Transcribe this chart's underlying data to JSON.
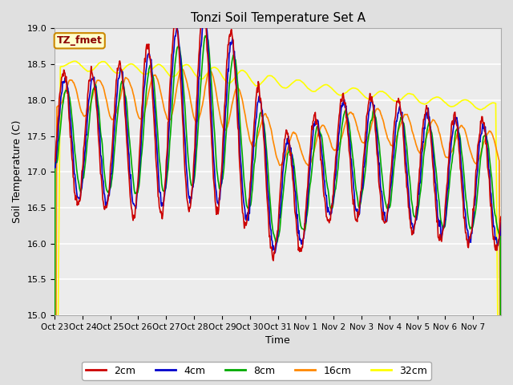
{
  "title": "Tonzi Soil Temperature Set A",
  "xlabel": "Time",
  "ylabel": "Soil Temperature (C)",
  "ylim": [
    15.0,
    19.0
  ],
  "yticks": [
    15.0,
    15.5,
    16.0,
    16.5,
    17.0,
    17.5,
    18.0,
    18.5,
    19.0
  ],
  "xtick_labels": [
    "Oct 23",
    "Oct 24",
    "Oct 25",
    "Oct 26",
    "Oct 27",
    "Oct 28",
    "Oct 29",
    "Oct 30",
    "Oct 31",
    "Nov 1",
    "Nov 2",
    "Nov 3",
    "Nov 4",
    "Nov 5",
    "Nov 6",
    "Nov 7"
  ],
  "colors": {
    "2cm": "#cc0000",
    "4cm": "#0000cc",
    "8cm": "#00aa00",
    "16cm": "#ff8800",
    "32cm": "#ffff00"
  },
  "legend_label": "TZ_fmet",
  "legend_bg": "#ffffcc",
  "legend_border": "#cc8800",
  "bg_color": "#e0e0e0",
  "plot_bg": "#ececec"
}
